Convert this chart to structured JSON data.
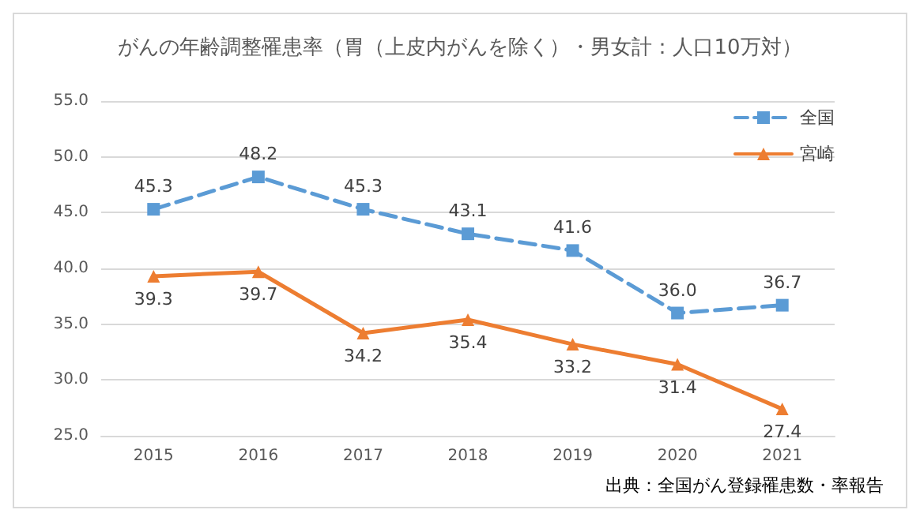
{
  "chart_data": {
    "type": "line",
    "title": "がんの年齢調整罹患率（胃（上皮内がんを除く）・男女計：人口10万対）",
    "categories": [
      "2015",
      "2016",
      "2017",
      "2018",
      "2019",
      "2020",
      "2021"
    ],
    "series": [
      {
        "name": "全国",
        "color": "#5b9bd5",
        "marker": "square",
        "line_style": "dashed",
        "values": [
          45.3,
          48.2,
          45.3,
          43.1,
          41.6,
          36.0,
          36.7
        ],
        "value_labels": [
          "45.3",
          "48.2",
          "45.3",
          "43.1",
          "41.6",
          "36.0",
          "36.7"
        ]
      },
      {
        "name": "宮崎",
        "color": "#ed7d31",
        "marker": "triangle",
        "line_style": "solid",
        "values": [
          39.3,
          39.7,
          34.2,
          35.4,
          33.2,
          31.4,
          27.4
        ],
        "value_labels": [
          "39.3",
          "39.7",
          "34.2",
          "35.4",
          "33.2",
          "31.4",
          "27.4"
        ]
      }
    ],
    "ylim": [
      25,
      55
    ],
    "yticks": [
      {
        "value": 25,
        "label": "25.0"
      },
      {
        "value": 30,
        "label": "30.0"
      },
      {
        "value": 35,
        "label": "35.0"
      },
      {
        "value": 40,
        "label": "40.0"
      },
      {
        "value": 45,
        "label": "45.0"
      },
      {
        "value": 50,
        "label": "50.0"
      },
      {
        "value": 55,
        "label": "55.0"
      }
    ],
    "grid": "y",
    "legend": "top right",
    "annotations": [
      "出典：全国がん登録罹患数・率報告"
    ]
  }
}
